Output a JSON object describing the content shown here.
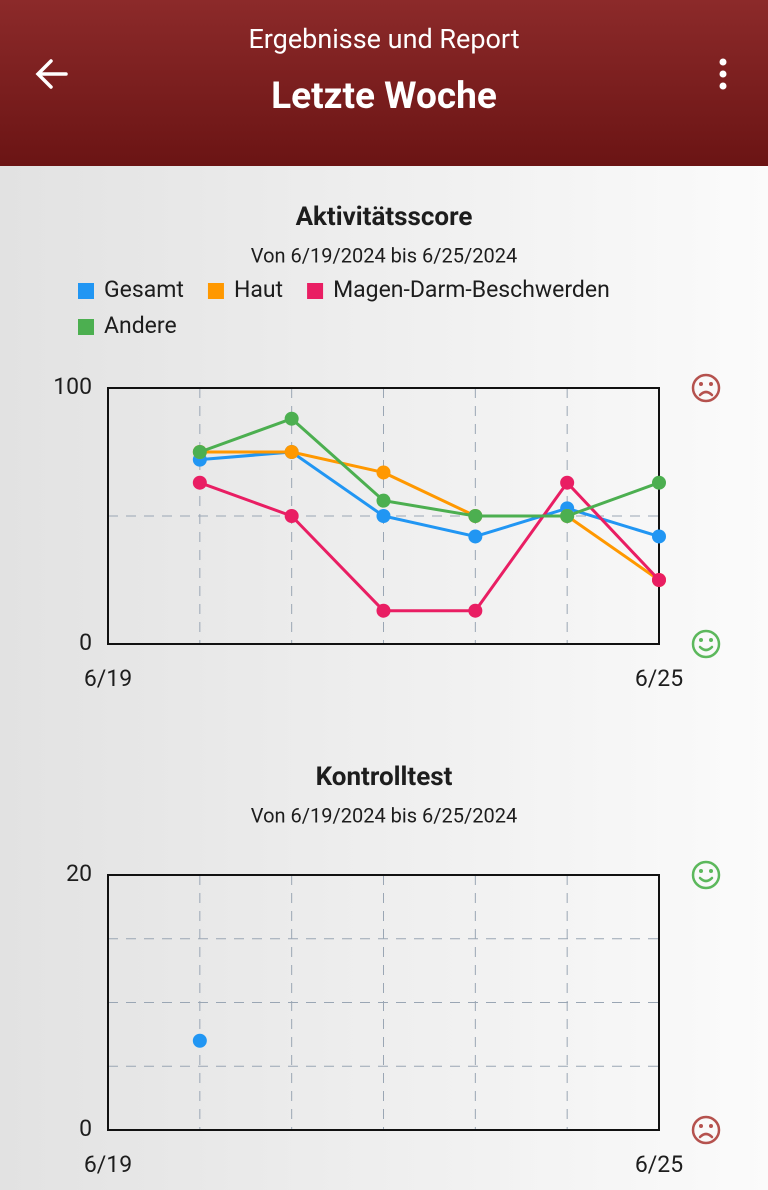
{
  "header": {
    "subtitle": "Ergebnisse und Report",
    "title": "Letzte Woche"
  },
  "chart_data": [
    {
      "type": "line",
      "title": "Aktivitätsscore",
      "subtitle": "Von 6/19/2024 bis 6/25/2024",
      "categories": [
        "6/19",
        null,
        null,
        null,
        null,
        null,
        "6/25"
      ],
      "series": [
        {
          "name": "Gesamt",
          "color": "#2196f3",
          "values": [
            null,
            72,
            75,
            50,
            42,
            53,
            42
          ]
        },
        {
          "name": "Haut",
          "color": "#ff9800",
          "values": [
            null,
            75,
            75,
            67,
            50,
            50,
            25
          ]
        },
        {
          "name": "Magen-Darm-Beschwerden",
          "color": "#e91e63",
          "values": [
            null,
            63,
            50,
            13,
            13,
            63,
            25
          ]
        },
        {
          "name": "Andere",
          "color": "#4caf50",
          "values": [
            null,
            75,
            88,
            56,
            50,
            50,
            63
          ]
        }
      ],
      "ylim": [
        0,
        100
      ],
      "yticks": [
        0,
        100
      ],
      "ygrid": [
        50
      ],
      "grid": true
    },
    {
      "type": "line",
      "title": "Kontrolltest",
      "subtitle": "Von 6/19/2024 bis 6/25/2024",
      "categories": [
        "6/19",
        null,
        null,
        null,
        null,
        null,
        "6/25"
      ],
      "series": [
        {
          "color": "#2196f3",
          "values": [
            null,
            7,
            null,
            null,
            null,
            null,
            null
          ]
        }
      ],
      "ylim": [
        0,
        20
      ],
      "yticks": [
        0,
        20
      ],
      "ygrid": [
        5,
        10,
        15
      ],
      "grid": true
    }
  ]
}
